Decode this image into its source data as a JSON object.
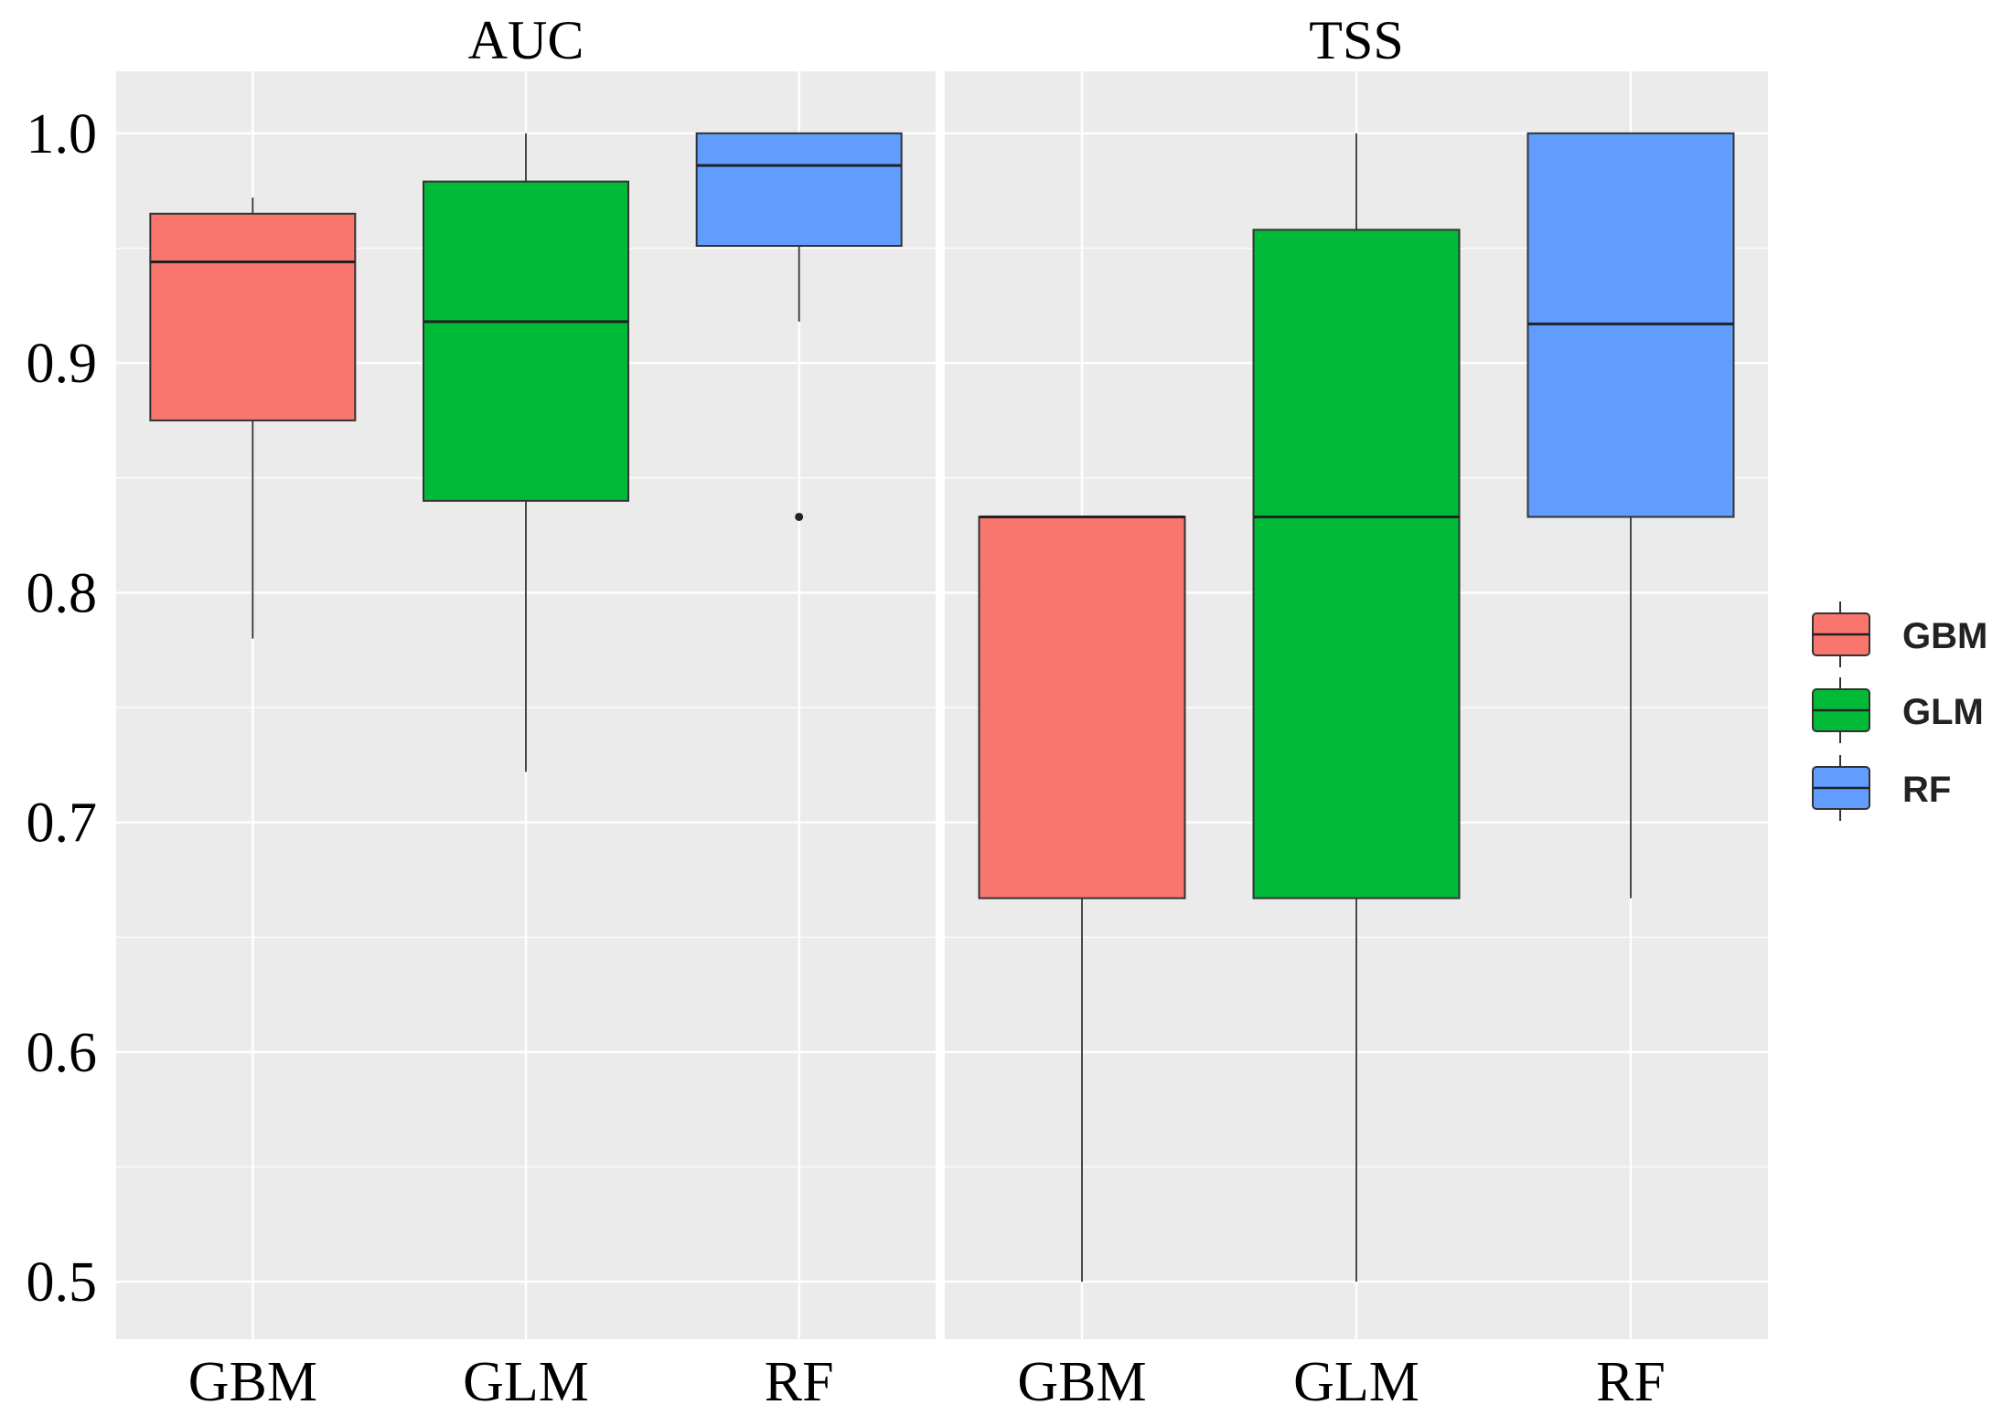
{
  "chart_data": {
    "type": "boxplot",
    "facets": [
      {
        "title": "AUC",
        "boxes": [
          {
            "category": "GBM",
            "whisker_low": 0.78,
            "q1": 0.875,
            "median": 0.944,
            "q3": 0.965,
            "whisker_high": 0.972,
            "outliers": []
          },
          {
            "category": "GLM",
            "whisker_low": 0.722,
            "q1": 0.84,
            "median": 0.918,
            "q3": 0.979,
            "whisker_high": 1.0,
            "outliers": []
          },
          {
            "category": "RF",
            "whisker_low": 0.918,
            "q1": 0.951,
            "median": 0.986,
            "q3": 1.0,
            "whisker_high": 1.0,
            "outliers": [
              0.833
            ]
          }
        ]
      },
      {
        "title": "TSS",
        "boxes": [
          {
            "category": "GBM",
            "whisker_low": 0.5,
            "q1": 0.667,
            "median": 0.833,
            "q3": 0.833,
            "whisker_high": 0.833,
            "outliers": []
          },
          {
            "category": "GLM",
            "whisker_low": 0.5,
            "q1": 0.667,
            "median": 0.833,
            "q3": 0.958,
            "whisker_high": 1.0,
            "outliers": []
          },
          {
            "category": "RF",
            "whisker_low": 0.667,
            "q1": 0.833,
            "median": 0.917,
            "q3": 1.0,
            "whisker_high": 1.0,
            "outliers": []
          }
        ]
      }
    ],
    "categories": [
      "GBM",
      "GLM",
      "RF"
    ],
    "yticks": [
      "0.5",
      "0.6",
      "0.7",
      "0.8",
      "0.9",
      "1.0"
    ],
    "ylim": [
      0.475,
      1.027
    ],
    "grid": true,
    "legend_position": "right",
    "legend": [
      {
        "label": "GBM",
        "color": "#F8766D"
      },
      {
        "label": "GLM",
        "color": "#00BA38"
      },
      {
        "label": "RF",
        "color": "#619CFF"
      }
    ],
    "colors": {
      "panel_bg": "#EBEBEB",
      "grid": "#FFFFFF",
      "box_border": "#333333"
    }
  }
}
